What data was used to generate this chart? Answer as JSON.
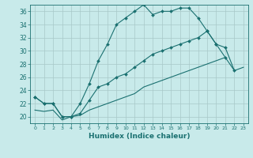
{
  "xlabel": "Humidex (Indice chaleur)",
  "background_color": "#c8eaea",
  "grid_color": "#b0cecece",
  "line_color": "#1a7070",
  "xlim": [
    -0.5,
    23.5
  ],
  "ylim": [
    19,
    37
  ],
  "yticks": [
    20,
    22,
    24,
    26,
    28,
    30,
    32,
    34,
    36
  ],
  "xticks": [
    0,
    1,
    2,
    3,
    4,
    5,
    6,
    7,
    8,
    9,
    10,
    11,
    12,
    13,
    14,
    15,
    16,
    17,
    18,
    19,
    20,
    21,
    22,
    23
  ],
  "line1_x": [
    0,
    1,
    2,
    3,
    4,
    5,
    6,
    7,
    8,
    9,
    10,
    11,
    12,
    13,
    14,
    15,
    16,
    17,
    18,
    19,
    20,
    21,
    22
  ],
  "line1_y": [
    23,
    22,
    22,
    20,
    20,
    22,
    25,
    28.5,
    31,
    34,
    35,
    36,
    37,
    35.5,
    36,
    36,
    36.5,
    36.5,
    35,
    33,
    31,
    30.5,
    27
  ],
  "line2_x": [
    0,
    1,
    2,
    3,
    4,
    5,
    6,
    7,
    8,
    9,
    10,
    11,
    12,
    13,
    14,
    15,
    16,
    17,
    18,
    19,
    20,
    21
  ],
  "line2_y": [
    23,
    22,
    22,
    20,
    20,
    20.5,
    22.5,
    24.5,
    25,
    26,
    26.5,
    27.5,
    28.5,
    29.5,
    30,
    30.5,
    31,
    31.5,
    32,
    33,
    31,
    29
  ],
  "line3_x": [
    0,
    1,
    2,
    3,
    4,
    5,
    6,
    7,
    8,
    9,
    10,
    11,
    12,
    13,
    14,
    15,
    16,
    17,
    18,
    19,
    20,
    21,
    22,
    23
  ],
  "line3_y": [
    21,
    20.8,
    21,
    19.5,
    20,
    20.2,
    21,
    21.5,
    22,
    22.5,
    23,
    23.5,
    24.5,
    25,
    25.5,
    26,
    26.5,
    27,
    27.5,
    28,
    28.5,
    29,
    27,
    27.5
  ]
}
